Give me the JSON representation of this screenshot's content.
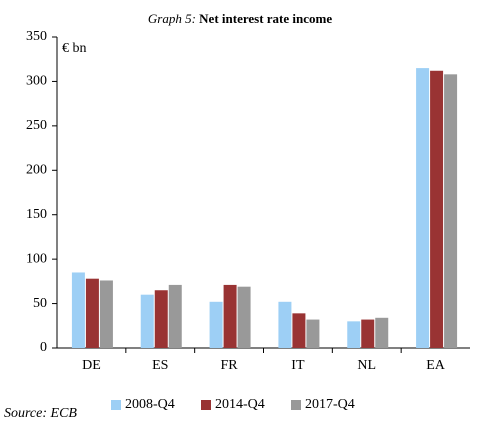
{
  "chart_data": {
    "type": "bar",
    "graph_label": "Graph 5:",
    "title": "Net interest rate income",
    "unit_label": "€ bn",
    "source": "Source: ECB",
    "categories": [
      "DE",
      "ES",
      "FR",
      "IT",
      "NL",
      "EA"
    ],
    "series": [
      {
        "name": "2008-Q4",
        "color": "#9dcff5",
        "values": [
          85,
          60,
          52,
          52,
          30,
          315
        ]
      },
      {
        "name": "2014-Q4",
        "color": "#993333",
        "values": [
          78,
          65,
          71,
          39,
          32,
          312
        ]
      },
      {
        "name": "2017-Q4",
        "color": "#999999",
        "values": [
          76,
          71,
          69,
          32,
          34,
          308
        ]
      }
    ],
    "ylim": [
      0,
      350
    ],
    "yticks": [
      0,
      50,
      100,
      150,
      200,
      250,
      300,
      350
    ],
    "grid": false,
    "legend": "bottom"
  }
}
